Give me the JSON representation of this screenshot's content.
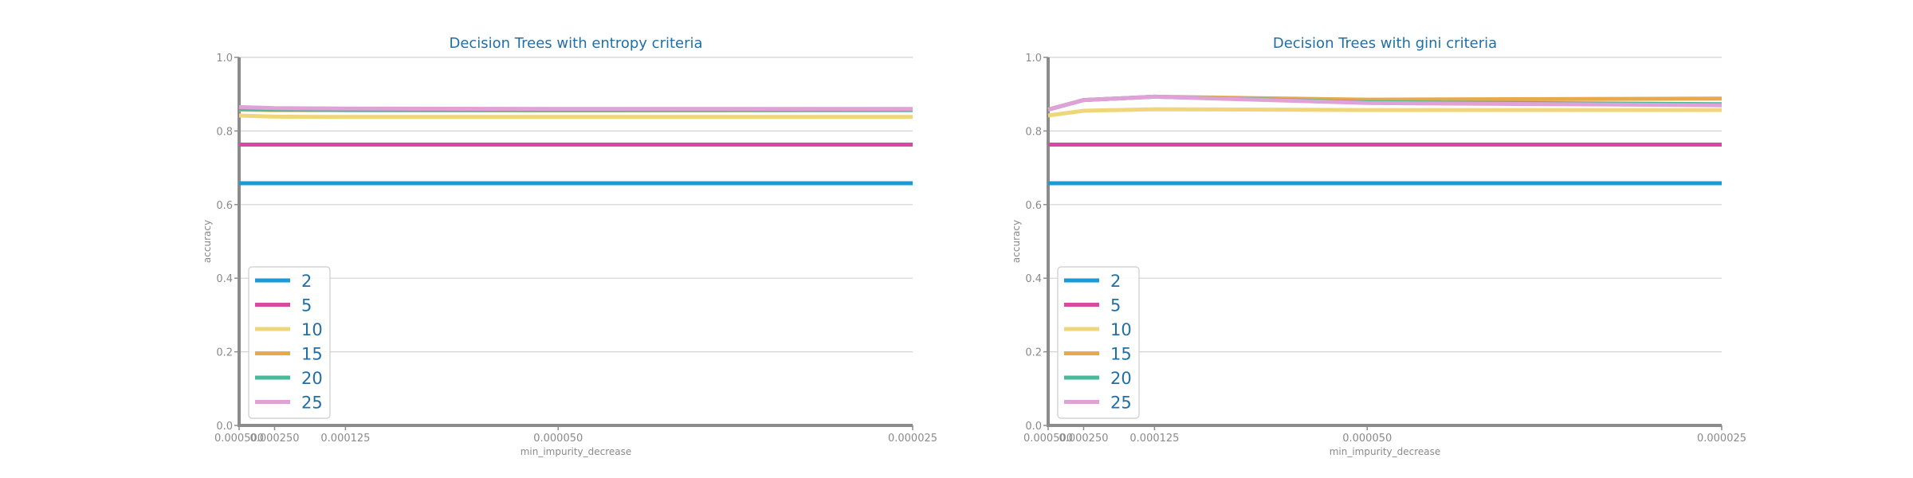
{
  "chart_data": [
    {
      "type": "line",
      "title": "Decision Trees with entropy criteria",
      "xlabel": "min_impurity_decrease",
      "ylabel": "accuracy",
      "x_scale": "reciprocal",
      "x": [
        0.0005,
        0.00025,
        0.000125,
        5e-05,
        2.5e-05
      ],
      "x_tick_labels": [
        "0.000500",
        "0.000250",
        "0.000125",
        "0.000050",
        "0.000025"
      ],
      "ylim": [
        0,
        1
      ],
      "y_ticks": [
        0.0,
        0.2,
        0.4,
        0.6,
        0.8,
        1.0
      ],
      "y_tick_labels": [
        "0.0",
        "0.2",
        "0.4",
        "0.6",
        "0.8",
        "1.0"
      ],
      "grid": "horizontal",
      "legend_position": "bottom-left",
      "series": [
        {
          "name": "2",
          "color": "#1a9ad6",
          "values": [
            0.658,
            0.658,
            0.658,
            0.658,
            0.658
          ]
        },
        {
          "name": "5",
          "color": "#d84aa0",
          "values": [
            0.763,
            0.763,
            0.763,
            0.763,
            0.763
          ]
        },
        {
          "name": "10",
          "color": "#f0d67a",
          "values": [
            0.842,
            0.839,
            0.838,
            0.838,
            0.838
          ]
        },
        {
          "name": "15",
          "color": "#e8a94a",
          "values": [
            0.858,
            0.857,
            0.857,
            0.856,
            0.857
          ]
        },
        {
          "name": "20",
          "color": "#4ab89a",
          "values": [
            0.86,
            0.858,
            0.857,
            0.857,
            0.857
          ]
        },
        {
          "name": "25",
          "color": "#e0a0d8",
          "values": [
            0.865,
            0.862,
            0.861,
            0.86,
            0.86
          ]
        }
      ]
    },
    {
      "type": "line",
      "title": "Decision Trees with gini criteria",
      "xlabel": "min_impurity_decrease",
      "ylabel": "accuracy",
      "x_scale": "reciprocal",
      "x": [
        0.0005,
        0.00025,
        0.000125,
        5e-05,
        2.5e-05
      ],
      "x_tick_labels": [
        "0.000500",
        "0.000250",
        "0.000125",
        "0.000050",
        "0.000025"
      ],
      "ylim": [
        0,
        1
      ],
      "y_ticks": [
        0.0,
        0.2,
        0.4,
        0.6,
        0.8,
        1.0
      ],
      "y_tick_labels": [
        "0.0",
        "0.2",
        "0.4",
        "0.6",
        "0.8",
        "1.0"
      ],
      "grid": "horizontal",
      "legend_position": "bottom-left",
      "series": [
        {
          "name": "2",
          "color": "#1a9ad6",
          "values": [
            0.658,
            0.658,
            0.658,
            0.658,
            0.658
          ]
        },
        {
          "name": "5",
          "color": "#d84aa0",
          "values": [
            0.763,
            0.763,
            0.763,
            0.763,
            0.763
          ]
        },
        {
          "name": "10",
          "color": "#f0d67a",
          "values": [
            0.842,
            0.855,
            0.859,
            0.857,
            0.857
          ]
        },
        {
          "name": "15",
          "color": "#e8a94a",
          "values": [
            0.858,
            0.884,
            0.893,
            0.885,
            0.888
          ]
        },
        {
          "name": "20",
          "color": "#4ab89a",
          "values": [
            0.858,
            0.884,
            0.893,
            0.878,
            0.873
          ]
        },
        {
          "name": "25",
          "color": "#e0a0d8",
          "values": [
            0.858,
            0.884,
            0.893,
            0.876,
            0.87
          ]
        }
      ]
    }
  ]
}
